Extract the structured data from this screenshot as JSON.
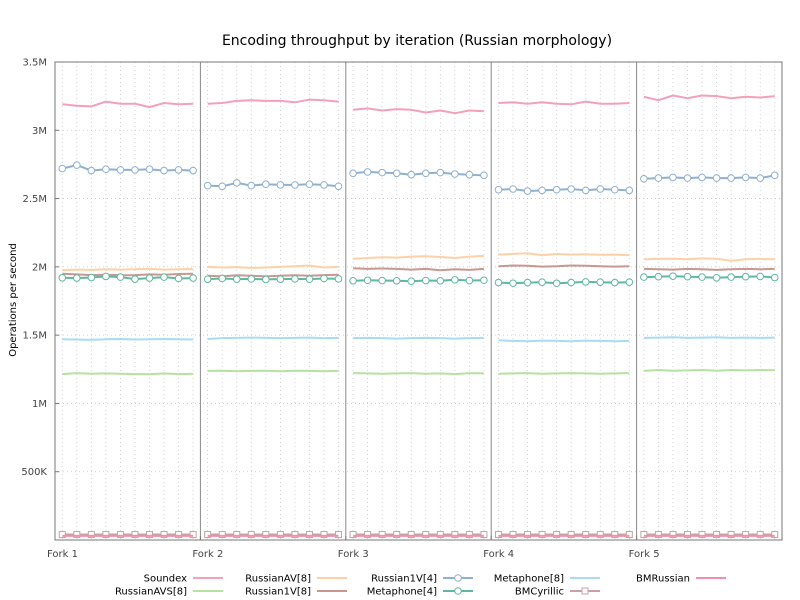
{
  "chart_data": {
    "type": "line",
    "title": "Encoding throughput by iteration (Russian morphology)",
    "ylabel": "Operations per second",
    "xlabel": "",
    "ylim": [
      0,
      3500000
    ],
    "y_ticks": [
      500000,
      1000000,
      1500000,
      2000000,
      2500000,
      3000000,
      3500000
    ],
    "y_tick_labels": [
      "500K",
      "1M",
      "1.5M",
      "2M",
      "2.5M",
      "3M",
      "3.5M"
    ],
    "x_tick_labels": [
      "Fork 1",
      "Fork 2",
      "Fork 3",
      "Fork 4",
      "Fork 5"
    ],
    "forks": 5,
    "iterations_per_fork": 10,
    "grid": true,
    "legend_position": "bottom",
    "series": [
      {
        "name": "Soundex",
        "color": "#f4a0b8",
        "marker": "none",
        "values": [
          3190000,
          3180000,
          3175000,
          3210000,
          3195000,
          3195000,
          3170000,
          3200000,
          3190000,
          3195000,
          3195000,
          3200000,
          3215000,
          3220000,
          3215000,
          3215000,
          3205000,
          3225000,
          3220000,
          3210000,
          3150000,
          3160000,
          3145000,
          3155000,
          3150000,
          3130000,
          3145000,
          3125000,
          3145000,
          3140000,
          3200000,
          3205000,
          3195000,
          3205000,
          3195000,
          3190000,
          3210000,
          3195000,
          3195000,
          3200000,
          3245000,
          3220000,
          3255000,
          3235000,
          3255000,
          3250000,
          3235000,
          3245000,
          3240000,
          3250000
        ]
      },
      {
        "name": "RussianAVS[8]",
        "color": "#b8e0a0",
        "marker": "none",
        "values": [
          1215000,
          1222000,
          1218000,
          1220000,
          1217000,
          1215000,
          1213000,
          1220000,
          1215000,
          1218000,
          1238000,
          1240000,
          1235000,
          1238000,
          1240000,
          1235000,
          1240000,
          1238000,
          1235000,
          1238000,
          1222000,
          1220000,
          1218000,
          1220000,
          1222000,
          1218000,
          1220000,
          1215000,
          1222000,
          1220000,
          1218000,
          1220000,
          1222000,
          1218000,
          1220000,
          1222000,
          1220000,
          1218000,
          1220000,
          1222000,
          1238000,
          1245000,
          1240000,
          1242000,
          1245000,
          1240000,
          1245000,
          1242000,
          1245000,
          1243000
        ]
      },
      {
        "name": "RussianAV[8]",
        "color": "#ffd0a8",
        "marker": "none",
        "values": [
          1975000,
          1980000,
          1978000,
          1982000,
          1980000,
          1983000,
          1985000,
          1980000,
          1982000,
          1985000,
          2000000,
          1995000,
          1998000,
          1992000,
          1995000,
          2000000,
          2005000,
          2010000,
          1995000,
          2000000,
          2060000,
          2065000,
          2070000,
          2068000,
          2075000,
          2078000,
          2072000,
          2065000,
          2075000,
          2080000,
          2090000,
          2095000,
          2100000,
          2085000,
          2095000,
          2090000,
          2092000,
          2088000,
          2090000,
          2085000,
          2055000,
          2058000,
          2060000,
          2055000,
          2062000,
          2060000,
          2045000,
          2055000,
          2058000,
          2055000
        ]
      },
      {
        "name": "Russian1V[8]",
        "color": "#c89890",
        "marker": "none",
        "values": [
          1950000,
          1945000,
          1940000,
          1942000,
          1938000,
          1940000,
          1945000,
          1942000,
          1948000,
          1950000,
          1935000,
          1930000,
          1938000,
          1935000,
          1930000,
          1935000,
          1938000,
          1935000,
          1940000,
          1942000,
          1990000,
          1985000,
          1988000,
          1985000,
          1980000,
          1985000,
          1975000,
          1982000,
          1978000,
          1985000,
          2005000,
          2010000,
          2008000,
          2002000,
          2005000,
          2010000,
          2008000,
          2005000,
          2002000,
          2005000,
          1985000,
          1982000,
          1980000,
          1985000,
          1982000,
          1978000,
          1982000,
          1985000,
          1982000,
          1985000
        ]
      },
      {
        "name": "Russian1V[4]",
        "color": "#90b0d0",
        "marker": "circle",
        "values": [
          2720000,
          2745000,
          2705000,
          2715000,
          2710000,
          2710000,
          2715000,
          2705000,
          2710000,
          2705000,
          2595000,
          2590000,
          2615000,
          2595000,
          2605000,
          2600000,
          2600000,
          2605000,
          2600000,
          2590000,
          2685000,
          2695000,
          2690000,
          2685000,
          2675000,
          2685000,
          2690000,
          2680000,
          2675000,
          2670000,
          2565000,
          2570000,
          2555000,
          2560000,
          2565000,
          2570000,
          2560000,
          2570000,
          2565000,
          2560000,
          2645000,
          2650000,
          2655000,
          2650000,
          2655000,
          2650000,
          2650000,
          2655000,
          2650000,
          2670000
        ]
      },
      {
        "name": "Metaphone[4]",
        "color": "#60b8a0",
        "marker": "circle",
        "values": [
          1920000,
          1918000,
          1922000,
          1930000,
          1925000,
          1910000,
          1918000,
          1925000,
          1915000,
          1918000,
          1910000,
          1915000,
          1910000,
          1912000,
          1908000,
          1910000,
          1912000,
          1910000,
          1915000,
          1912000,
          1898000,
          1902000,
          1900000,
          1898000,
          1895000,
          1900000,
          1898000,
          1905000,
          1900000,
          1902000,
          1885000,
          1880000,
          1885000,
          1888000,
          1880000,
          1885000,
          1890000,
          1888000,
          1885000,
          1888000,
          1925000,
          1928000,
          1932000,
          1928000,
          1925000,
          1920000,
          1925000,
          1928000,
          1930000,
          1922000
        ]
      },
      {
        "name": "Metaphone[8]",
        "color": "#a8dcf4",
        "marker": "none",
        "values": [
          1470000,
          1468000,
          1465000,
          1470000,
          1472000,
          1468000,
          1470000,
          1472000,
          1470000,
          1468000,
          1472000,
          1478000,
          1480000,
          1482000,
          1480000,
          1478000,
          1480000,
          1482000,
          1478000,
          1480000,
          1478000,
          1480000,
          1478000,
          1475000,
          1478000,
          1480000,
          1478000,
          1475000,
          1478000,
          1480000,
          1462000,
          1458000,
          1455000,
          1460000,
          1458000,
          1455000,
          1460000,
          1458000,
          1455000,
          1458000,
          1480000,
          1482000,
          1485000,
          1480000,
          1482000,
          1485000,
          1480000,
          1482000,
          1480000,
          1482000
        ]
      },
      {
        "name": "BMCyrillic",
        "color": "#c8a0a8",
        "marker": "square",
        "values": [
          40000,
          40000,
          40000,
          40000,
          40000,
          40000,
          40000,
          40000,
          40000,
          40000,
          40000,
          40000,
          40000,
          40000,
          40000,
          40000,
          40000,
          40000,
          40000,
          40000,
          40000,
          40000,
          40000,
          40000,
          40000,
          40000,
          40000,
          40000,
          40000,
          40000,
          40000,
          40000,
          40000,
          40000,
          40000,
          40000,
          40000,
          40000,
          40000,
          40000,
          40000,
          40000,
          40000,
          40000,
          40000,
          40000,
          40000,
          40000,
          40000,
          40000
        ]
      },
      {
        "name": "BMRussian",
        "color": "#f090a8",
        "marker": "none",
        "values": [
          30000,
          30000,
          30000,
          30000,
          30000,
          30000,
          30000,
          30000,
          30000,
          30000,
          30000,
          30000,
          30000,
          30000,
          30000,
          30000,
          30000,
          30000,
          30000,
          30000,
          30000,
          30000,
          30000,
          30000,
          30000,
          30000,
          30000,
          30000,
          30000,
          30000,
          30000,
          30000,
          30000,
          30000,
          30000,
          30000,
          30000,
          30000,
          30000,
          30000,
          30000,
          30000,
          30000,
          30000,
          30000,
          30000,
          30000,
          30000,
          30000,
          30000
        ]
      }
    ],
    "legend_order": [
      "Soundex",
      "RussianAVS[8]",
      "RussianAV[8]",
      "Russian1V[8]",
      "Russian1V[4]",
      "Metaphone[4]",
      "Metaphone[8]",
      "BMCyrillic",
      "BMRussian"
    ]
  }
}
